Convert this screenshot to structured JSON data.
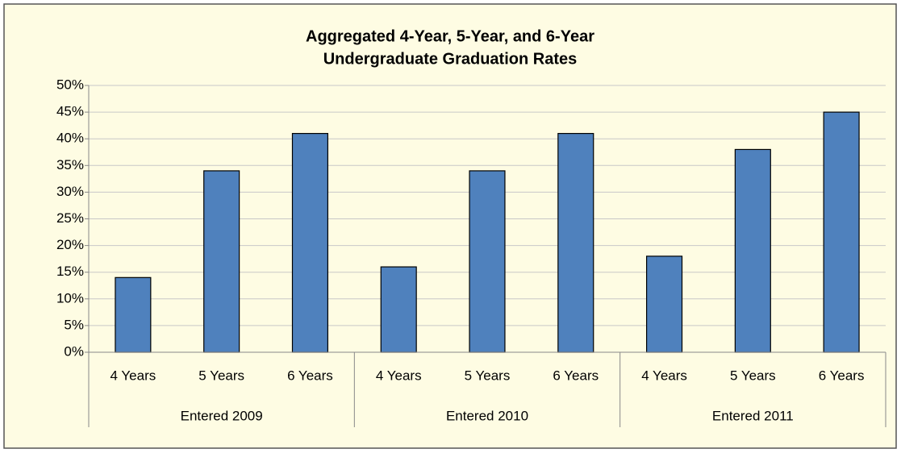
{
  "chart_data": {
    "type": "bar",
    "title": [
      "Aggregated 4-Year, 5-Year, and 6-Year",
      "Undergraduate Graduation Rates"
    ],
    "categories": [
      "4 Years",
      "5 Years",
      "6 Years",
      "4 Years",
      "5 Years",
      "6 Years",
      "4 Years",
      "5 Years",
      "6 Years"
    ],
    "groups": [
      "Entered 2009",
      "Entered 2010",
      "Entered 2011"
    ],
    "values": [
      14,
      34,
      41,
      16,
      34,
      41,
      18,
      38,
      45
    ],
    "color": "#4f81bd",
    "ylim": [
      0,
      50
    ],
    "yticks": [
      {
        "value": 0,
        "label": "0%"
      },
      {
        "value": 5,
        "label": "5%"
      },
      {
        "value": 10,
        "label": "10%"
      },
      {
        "value": 15,
        "label": "15%"
      },
      {
        "value": 20,
        "label": "20%"
      },
      {
        "value": 25,
        "label": "25%"
      },
      {
        "value": 30,
        "label": "30%"
      },
      {
        "value": 35,
        "label": "35%"
      },
      {
        "value": 40,
        "label": "40%"
      },
      {
        "value": 45,
        "label": "45%"
      },
      {
        "value": 50,
        "label": "50%"
      }
    ],
    "grid": true
  }
}
